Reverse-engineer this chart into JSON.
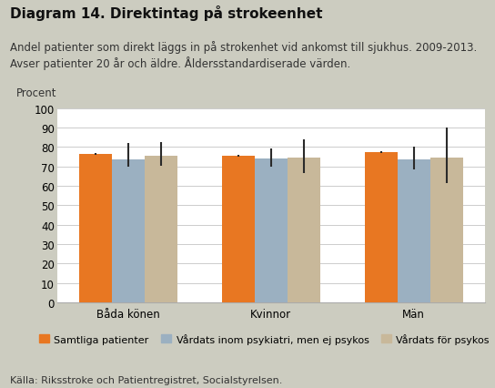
{
  "title": "Diagram 14. Direktintag på strokeenhet",
  "subtitle_line1": "Andel patienter som direkt läggs in på strokenhet vid ankomst till sjukhus. 2009-2013.",
  "subtitle_line2": "Avser patienter 20 år och äldre. Åldersstandardiserade värden.",
  "ylabel": "Procent",
  "source": "Källa: Riksstroke och Patientregistret, Socialstyrelsen.",
  "categories": [
    "Båda könen",
    "Kvinnor",
    "Män"
  ],
  "series": [
    {
      "name": "Samtliga patienter",
      "color": "#E87722",
      "values": [
        76.5,
        75.5,
        77.5
      ],
      "yerr_low": [
        0.5,
        0.5,
        0.5
      ],
      "yerr_high": [
        0.5,
        0.5,
        0.5
      ]
    },
    {
      "name": "Vårdats inom psykiatri, men ej psykos",
      "color": "#9BB0C1",
      "values": [
        73.5,
        74.0,
        73.5
      ],
      "yerr_low": [
        3.5,
        4.0,
        5.0
      ],
      "yerr_high": [
        8.5,
        5.0,
        6.5
      ]
    },
    {
      "name": "Vårdats för psykos",
      "color": "#C8B89A",
      "values": [
        75.5,
        74.5,
        74.5
      ],
      "yerr_low": [
        5.0,
        8.0,
        13.0
      ],
      "yerr_high": [
        7.0,
        9.5,
        15.5
      ]
    }
  ],
  "ylim": [
    0,
    100
  ],
  "yticks": [
    0,
    10,
    20,
    30,
    40,
    50,
    60,
    70,
    80,
    90,
    100
  ],
  "background_color": "#CCCCC0",
  "plot_bg_color": "#FFFFFF",
  "title_fontsize": 11,
  "subtitle_fontsize": 8.5,
  "axis_fontsize": 8.5,
  "legend_fontsize": 8,
  "source_fontsize": 8
}
